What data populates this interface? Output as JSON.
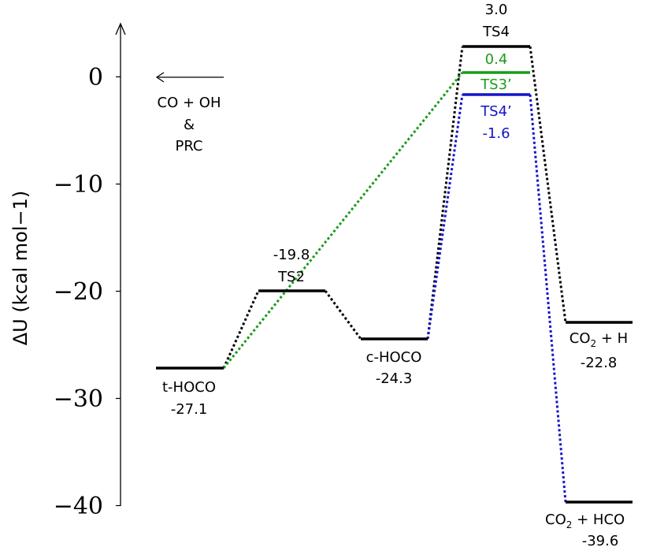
{
  "colors": {
    "black": "#000000",
    "green": "#1a9b1a",
    "blue": "#1414c8"
  },
  "y_axis": {
    "label": "ΔU (kcal mol−1)",
    "ticks": [
      {
        "value": 0,
        "label": "0"
      },
      {
        "value": -10,
        "label": "−10"
      },
      {
        "value": -20,
        "label": "−20"
      },
      {
        "value": -30,
        "label": "−30"
      },
      {
        "value": -40,
        "label": "−40"
      }
    ]
  },
  "reactant": {
    "line1": "CO + OH",
    "line2": "&",
    "line3": "PRC"
  },
  "levels": {
    "thoco": {
      "name": "t-HOCO",
      "energy": -27.1,
      "energy_label": "-27.1"
    },
    "ts2": {
      "name": "TS2",
      "energy": -19.8,
      "energy_label": "-19.8"
    },
    "choco": {
      "name": "c-HOCO",
      "energy": -24.3,
      "energy_label": "-24.3"
    },
    "ts4": {
      "name": "TS4",
      "energy": 3.0,
      "energy_label": "3.0"
    },
    "ts3p": {
      "name": "TS3’",
      "energy": 0.4,
      "energy_label": "0.4"
    },
    "ts4p": {
      "name": "TS4’",
      "energy": -1.6,
      "energy_label": "-1.6"
    },
    "co2h": {
      "name_main": "CO",
      "name_sub": "2",
      "name_rest": " + H",
      "energy": -22.8,
      "energy_label": "-22.8"
    },
    "co2hco": {
      "name_main": "CO",
      "name_sub": "2",
      "name_rest": " + HCO",
      "energy": -39.6,
      "energy_label": "-39.6"
    }
  }
}
